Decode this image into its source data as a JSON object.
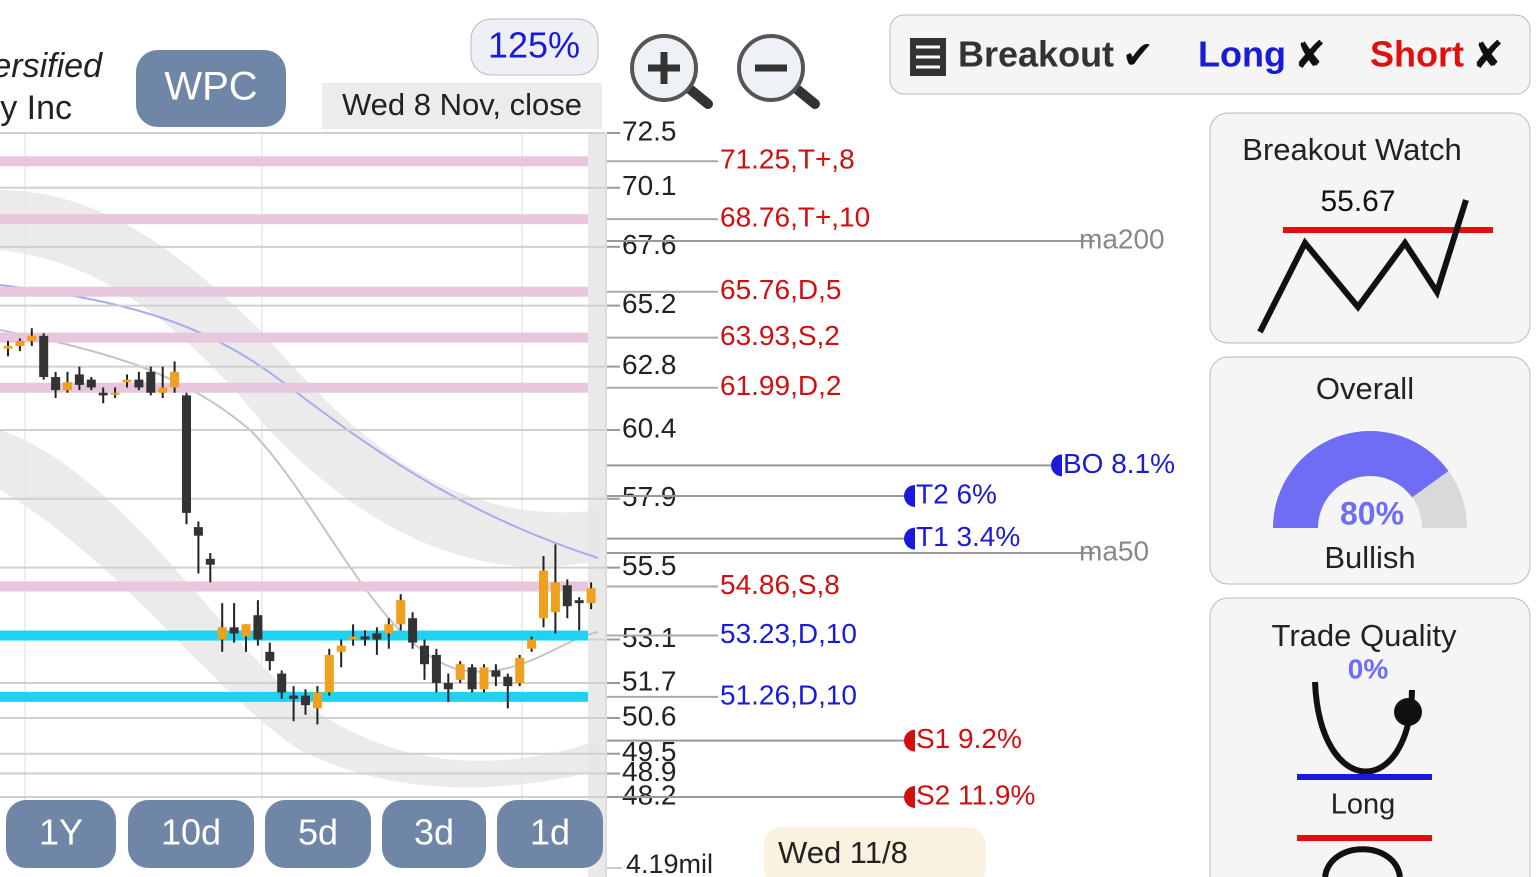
{
  "company_line1": "ersified",
  "company_line2": "y Inc",
  "ticker": "WPC",
  "zoom": "125%",
  "date_label": "Wed 8 Nov, close",
  "signals": [
    {
      "label": "Breakout",
      "mark": "✔",
      "color": "#333333"
    },
    {
      "label": "Long",
      "mark": "✘",
      "color": "#1a1adb"
    },
    {
      "label": "Short",
      "mark": "✘",
      "color": "#e01010"
    }
  ],
  "chart_data": {
    "type": "candlestick",
    "ylim": [
      48.2,
      72.5
    ],
    "log_scale": true,
    "grid": true,
    "yticks": [
      72.5,
      70.1,
      67.6,
      65.2,
      62.8,
      60.4,
      57.9,
      55.5,
      53.1,
      51.7,
      50.6,
      49.5,
      48.9,
      48.2
    ],
    "up_color": "#f0a020",
    "down_color": "#333333",
    "open": [
      63.5,
      63.6,
      63.8,
      64.0,
      62.4,
      61.9,
      62.5,
      62.3,
      61.8,
      61.8,
      62.2,
      62.3,
      62.6,
      61.8,
      62.0,
      61.7,
      56.9,
      55.8,
      53.1,
      53.5,
      53.2,
      53.9,
      52.7,
      52.0,
      51.3,
      51.3,
      50.9,
      51.4,
      52.7,
      53.1,
      53.2,
      53.3,
      53.3,
      53.6,
      53.8,
      52.9,
      52.6,
      51.7,
      51.8,
      52.2,
      51.5,
      52.1,
      51.9,
      51.7,
      52.8,
      53.8,
      54.0,
      54.9,
      54.4,
      54.3
    ],
    "high": [
      63.8,
      63.9,
      64.3,
      64.1,
      62.6,
      62.6,
      62.8,
      62.4,
      62.0,
      62.0,
      62.5,
      62.6,
      62.8,
      62.8,
      63.0,
      61.8,
      57.1,
      56.0,
      54.3,
      54.3,
      53.6,
      54.4,
      53.0,
      52.1,
      51.6,
      51.5,
      51.6,
      52.8,
      53.1,
      53.6,
      53.4,
      53.5,
      53.8,
      54.6,
      54.0,
      53.1,
      52.8,
      52.0,
      52.4,
      52.3,
      52.3,
      52.3,
      52.0,
      52.6,
      53.2,
      55.9,
      56.3,
      55.1,
      54.5,
      55.0
    ],
    "low": [
      63.2,
      63.4,
      63.6,
      62.3,
      61.6,
      61.8,
      61.9,
      61.9,
      61.4,
      61.6,
      62.0,
      61.9,
      61.7,
      61.6,
      61.8,
      57.0,
      55.3,
      55.0,
      52.7,
      53.0,
      52.7,
      52.9,
      52.1,
      51.2,
      50.5,
      50.7,
      50.4,
      51.3,
      52.2,
      52.9,
      52.9,
      52.6,
      52.8,
      53.4,
      52.8,
      51.8,
      51.4,
      51.1,
      51.7,
      51.4,
      51.4,
      51.6,
      50.9,
      51.6,
      52.7,
      53.5,
      53.3,
      53.8,
      53.4,
      54.1
    ],
    "close": [
      63.6,
      63.8,
      64.0,
      62.4,
      61.9,
      62.2,
      62.1,
      62.0,
      61.7,
      61.8,
      62.3,
      62.0,
      61.8,
      62.0,
      62.6,
      57.4,
      56.6,
      55.6,
      53.5,
      53.3,
      53.6,
      53.1,
      52.4,
      51.4,
      51.2,
      51.0,
      51.4,
      52.6,
      52.9,
      53.2,
      53.1,
      53.1,
      53.6,
      54.4,
      53.0,
      52.3,
      51.7,
      51.5,
      52.3,
      51.5,
      52.2,
      51.9,
      51.6,
      52.5,
      53.1,
      55.4,
      55.0,
      54.2,
      54.3,
      54.8
    ],
    "levels": [
      {
        "value": 71.25,
        "label": "71.25,T+,8",
        "color": "#d01010",
        "band": "#e8c6dd"
      },
      {
        "value": 68.76,
        "label": "68.76,T+,10",
        "color": "#d01010",
        "band": "#e8c6dd"
      },
      {
        "value": 65.76,
        "label": "65.76,D,5",
        "color": "#d01010",
        "band": "#e8c6dd"
      },
      {
        "value": 63.93,
        "label": "63.93,S,2",
        "color": "#d01010",
        "band": "#e8c6dd"
      },
      {
        "value": 61.99,
        "label": "61.99,D,2",
        "color": "#d01010",
        "band": "#e8c6dd"
      },
      {
        "value": 54.86,
        "label": "54.86,S,8",
        "color": "#d01010",
        "band": "#e8c6dd"
      },
      {
        "value": 53.23,
        "label": "53.23,D,10",
        "color": "#1a1adb",
        "band": "#1fd3f0"
      },
      {
        "value": 51.26,
        "label": "51.26,D,10",
        "color": "#1a1adb",
        "band": "#1fd3f0"
      }
    ],
    "lines": [
      {
        "value": 67.84,
        "label": "ma200",
        "color": "#888888",
        "end": "long"
      },
      {
        "value": 59.1,
        "label": "BO 8.1%",
        "color": "#1a1adb",
        "end": "bo"
      },
      {
        "value": 58.0,
        "label": "T2 6%",
        "color": "#1a1adb",
        "end": "target"
      },
      {
        "value": 56.5,
        "label": "T1 3.4%",
        "color": "#1a1adb",
        "end": "target"
      },
      {
        "value": 56.0,
        "label": "ma50",
        "color": "#888888",
        "end": "long"
      },
      {
        "value": 49.9,
        "label": "S1 9.2%",
        "color": "#d01010",
        "end": "target"
      },
      {
        "value": 48.2,
        "label": "S2 11.9%",
        "color": "#d01010",
        "end": "target"
      }
    ]
  },
  "ranges": [
    "1Y",
    "10d",
    "5d",
    "3d",
    "1d"
  ],
  "volume_label": "4.19mil",
  "hover_date": "Wed 11/8",
  "breakout_watch": {
    "title": "Breakout Watch",
    "value": 55.67
  },
  "overall": {
    "title": "Overall",
    "value": 80,
    "label": "80%",
    "sentiment": "Bullish"
  },
  "trade_quality": {
    "title": "Trade Quality",
    "value": 0,
    "label": "0%",
    "side": "Long"
  }
}
